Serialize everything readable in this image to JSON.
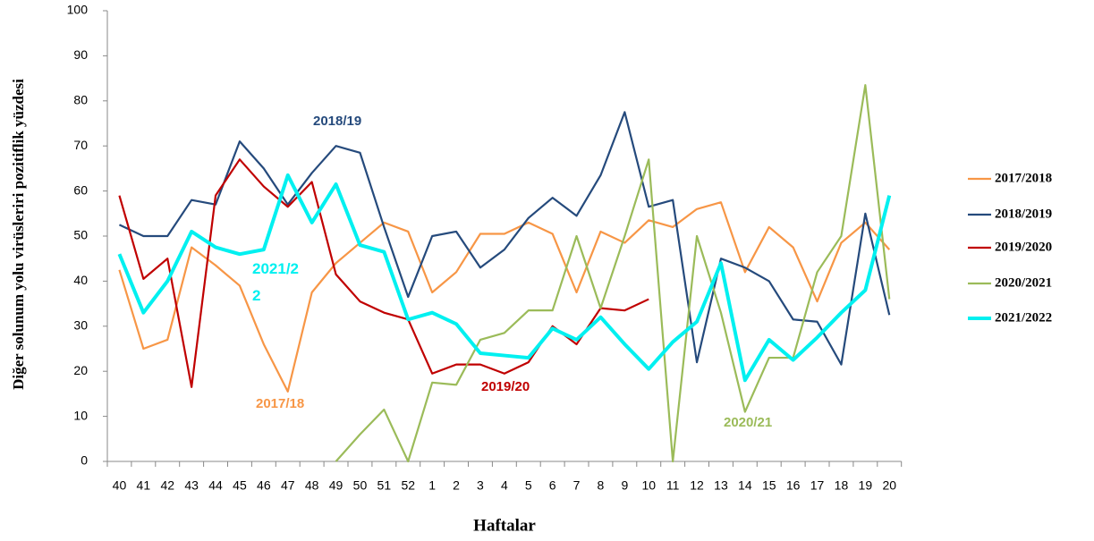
{
  "chart_data": {
    "type": "line",
    "y_label": "Diğer solunum yolu virüsleriri pozitiflik yüzdesi",
    "x_label": "Haftalar",
    "categories": [
      "40",
      "41",
      "42",
      "43",
      "44",
      "45",
      "46",
      "47",
      "48",
      "49",
      "50",
      "51",
      "52",
      "1",
      "2",
      "3",
      "4",
      "5",
      "6",
      "7",
      "8",
      "9",
      "10",
      "11",
      "12",
      "13",
      "14",
      "15",
      "16",
      "17",
      "18",
      "19",
      "20"
    ],
    "ylim": [
      0,
      100
    ],
    "yticks": [
      0,
      10,
      20,
      30,
      40,
      50,
      60,
      70,
      80,
      90,
      100
    ],
    "grid": false,
    "legend": "right",
    "series": [
      {
        "name": "2017/2018",
        "color": "#f79646",
        "values": [
          42.5,
          25,
          27,
          47.5,
          43.5,
          39,
          26,
          15.5,
          37.5,
          44,
          48.5,
          53,
          51,
          37.5,
          42,
          50.5,
          50.5,
          53,
          50.5,
          37.5,
          51,
          48.5,
          53.5,
          52,
          56,
          57.5,
          42,
          52,
          47.5,
          35.5,
          48.5,
          53,
          47
        ]
      },
      {
        "name": "2018/2019",
        "color": "#254a7c",
        "values": [
          52.5,
          50,
          50,
          58,
          57,
          71,
          65,
          57,
          64,
          70,
          68.5,
          52,
          36.5,
          50,
          51,
          43,
          47,
          54,
          58.5,
          54.5,
          63.5,
          77.5,
          56.5,
          58,
          22,
          45,
          43,
          40,
          31.5,
          31,
          21.5,
          55,
          32.5
        ]
      },
      {
        "name": "2019/2020",
        "color": "#c00000",
        "values": [
          59,
          40.5,
          45,
          16.5,
          59,
          67,
          61,
          56.5,
          62,
          41.5,
          35.5,
          33,
          31.5,
          19.5,
          21.5,
          21.5,
          19.5,
          22,
          30,
          26,
          34,
          33.5,
          36,
          null,
          null,
          null,
          null,
          null,
          null,
          null,
          null,
          null,
          null
        ]
      },
      {
        "name": "2020/2021",
        "color": "#9bbb59",
        "values": [
          null,
          null,
          null,
          null,
          null,
          null,
          null,
          null,
          null,
          0,
          6,
          11.5,
          0,
          17.5,
          17,
          27,
          28.5,
          33.5,
          33.5,
          50,
          34,
          50,
          67,
          0,
          50,
          33,
          11,
          23,
          23,
          42,
          50,
          83.5,
          36
        ]
      },
      {
        "name": "2021/2022",
        "color": "#00f0f0",
        "values": [
          46,
          33,
          40,
          51,
          47.5,
          46,
          47,
          63.5,
          53,
          61.5,
          48,
          46.5,
          31.5,
          33,
          30.5,
          24,
          23.5,
          23,
          29.5,
          27,
          32,
          26,
          20.5,
          26.5,
          31,
          44,
          18,
          27,
          22.5,
          27.5,
          33,
          38,
          59
        ]
      }
    ],
    "annotations": [
      {
        "text": "2018/19",
        "color": "#254a7c"
      },
      {
        "text": "2021/22",
        "color": "#00f0f0"
      },
      {
        "text": "2017/18",
        "color": "#f79646"
      },
      {
        "text": "2019/20",
        "color": "#c00000"
      },
      {
        "text": "2020/21",
        "color": "#9bbb59"
      }
    ]
  }
}
